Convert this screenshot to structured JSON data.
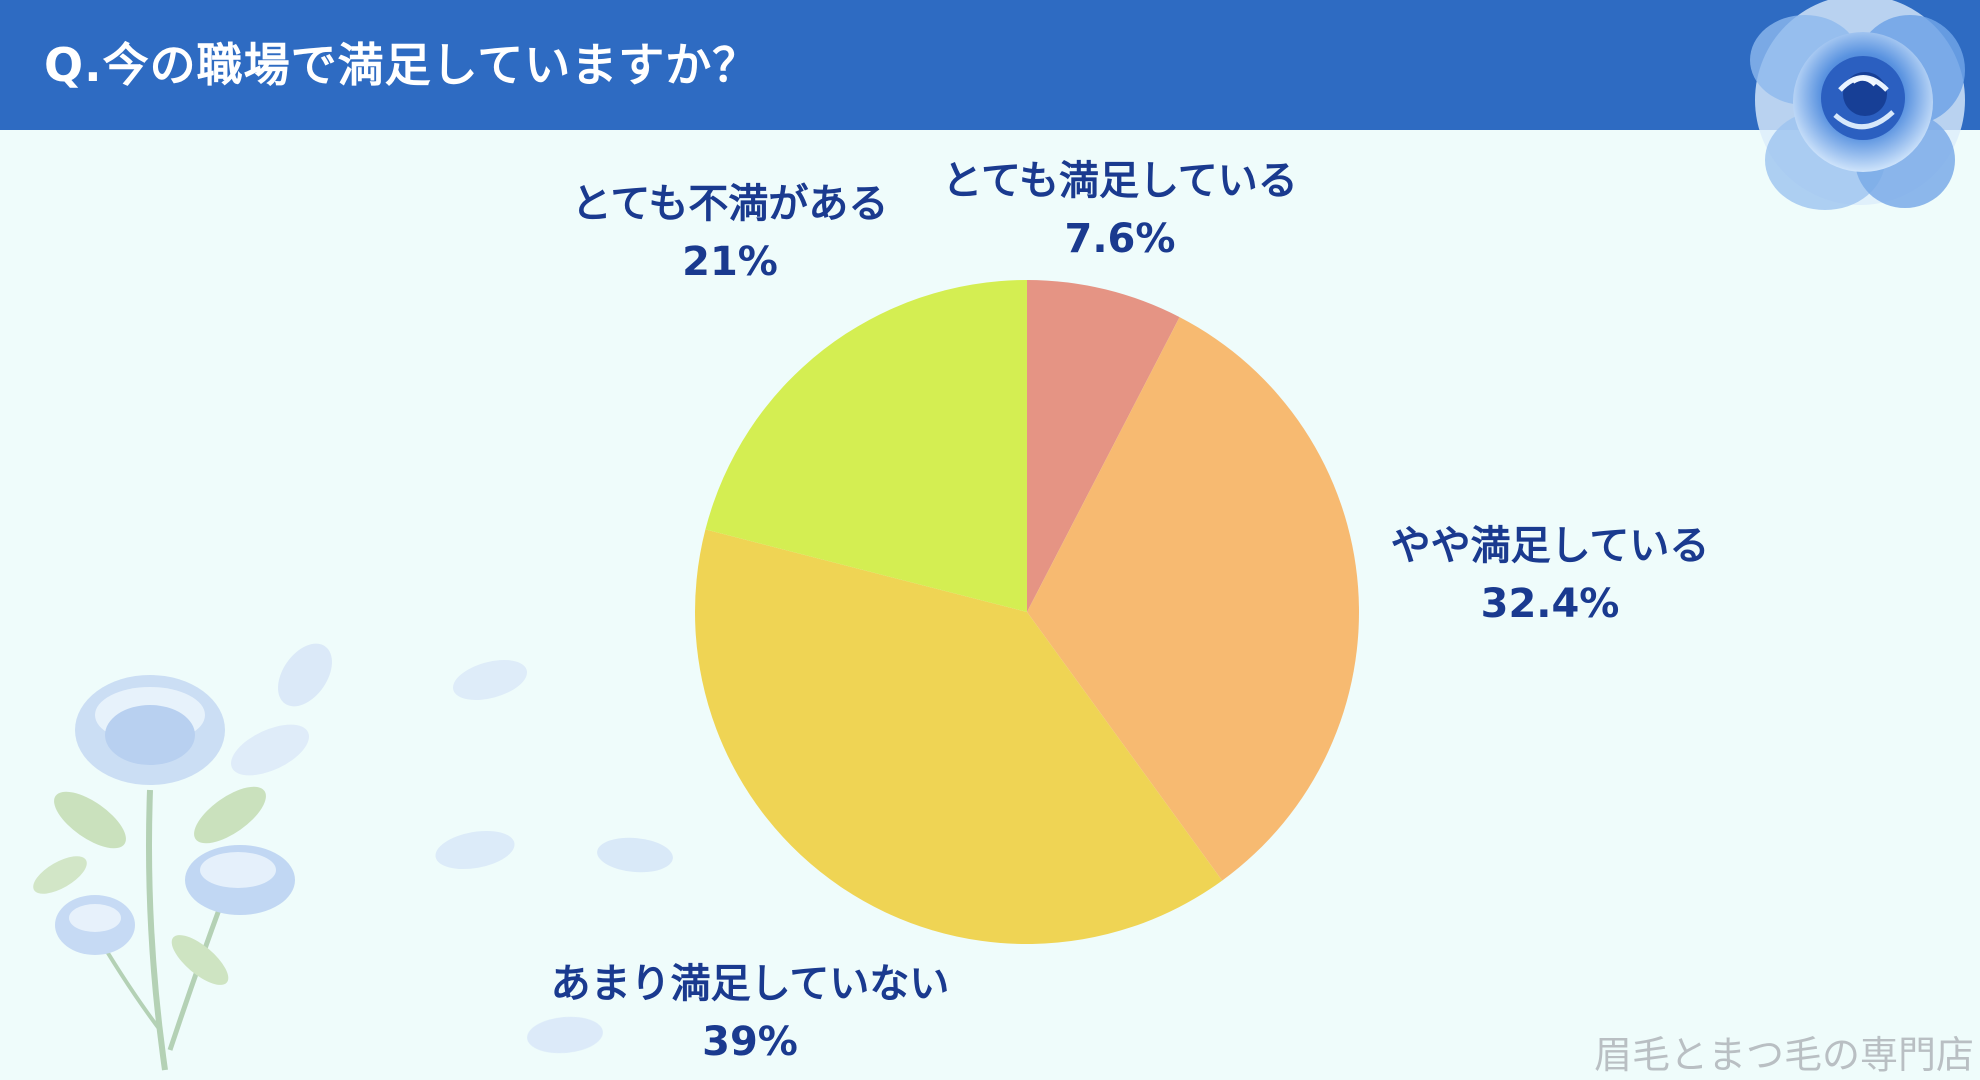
{
  "header": {
    "title": "Q.今の職場で満足していますか？"
  },
  "chart_data": {
    "type": "pie",
    "title": "Q.今の職場で満足していますか？",
    "categories": [
      "とても満足している",
      "やや満足している",
      "あまり満足していない",
      "とても不満がある"
    ],
    "values": [
      7.6,
      32.4,
      39,
      21
    ],
    "value_labels": [
      "7.6%",
      "32.4%",
      "39%",
      "21%"
    ],
    "colors": [
      "#e59484",
      "#f7ba71",
      "#efd454",
      "#d4ee52"
    ],
    "start_angle": "12 o'clock",
    "direction": "clockwise",
    "legend": "none"
  },
  "labels": [
    {
      "name": "とても満足している",
      "value": "7.6%"
    },
    {
      "name": "やや満足している",
      "value": "32.4%"
    },
    {
      "name": "あまり満足していない",
      "value": "39%"
    },
    {
      "name": "とても不満がある",
      "value": "21%"
    }
  ],
  "watermark": "眉毛とまつ毛の専門店",
  "decorations": {
    "top_right": "blue-rose-icon",
    "bottom_left": "blue-roses-and-petals-icon"
  }
}
